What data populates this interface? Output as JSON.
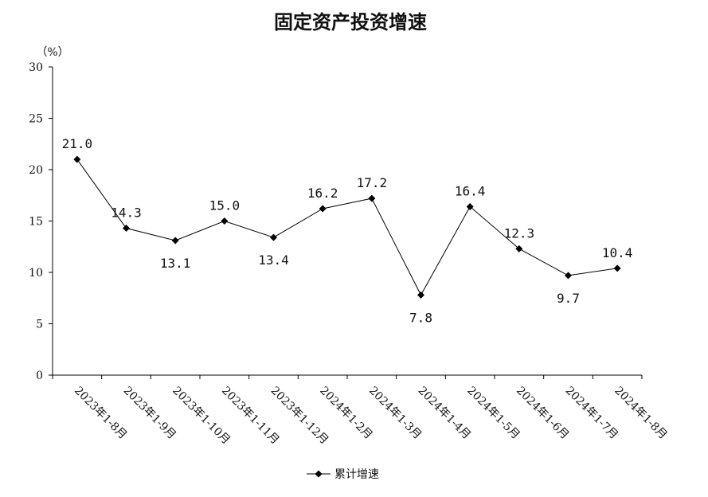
{
  "chart_data": {
    "type": "line",
    "title": "固定资产投资增速",
    "ylabel": "（%）",
    "xlabel": "",
    "ylim": [
      0,
      30
    ],
    "yticks": [
      0,
      5,
      10,
      15,
      20,
      25,
      30
    ],
    "categories": [
      "2023年1-8月",
      "2023年1-9月",
      "2023年1-10月",
      "2023年1-11月",
      "2023年1-12月",
      "2024年1-2月",
      "2024年1-3月",
      "2024年1-4月",
      "2024年1-5月",
      "2024年1-6月",
      "2024年1-7月",
      "2024年1-8月"
    ],
    "series": [
      {
        "name": "累计增速",
        "values": [
          21.0,
          14.3,
          13.1,
          15.0,
          13.4,
          16.2,
          17.2,
          7.8,
          16.4,
          12.3,
          9.7,
          10.4
        ],
        "labels": [
          "21.0",
          "14.3",
          "13.1",
          "15.0",
          "13.4",
          "16.2",
          "17.2",
          "7.8",
          "16.4",
          "12.3",
          "9.7",
          "10.4"
        ]
      }
    ],
    "grid": false,
    "legend_position": "bottom",
    "colors": {
      "line": "#000000",
      "axis": "#000000"
    }
  }
}
